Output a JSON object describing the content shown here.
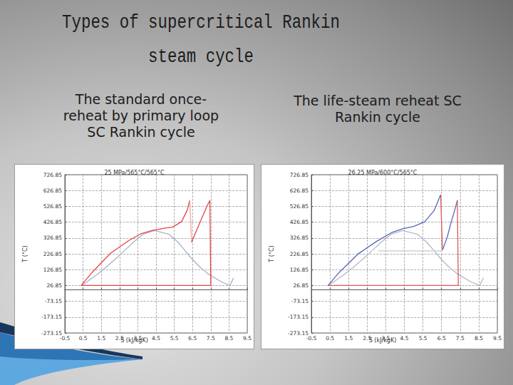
{
  "slide": {
    "title_lines": [
      "Types of supercritical Rankin",
      "steam cycle"
    ],
    "captions": [
      [
        "The standard once-",
        "reheat by primary loop",
        "SC Rankin cycle"
      ],
      [
        "The life-steam reheat SC",
        "Rankin cycle"
      ]
    ]
  },
  "chart_data": [
    {
      "type": "line",
      "title": "25 MPa/565°C/565°C",
      "x_label": "S (kJ/kgK)",
      "y_label": "T (°C)",
      "xlim": [
        -0.5,
        9.5
      ],
      "ylim": [
        -273.15,
        726.85
      ],
      "xticks": [
        -0.5,
        0.5,
        1.5,
        2.5,
        3.5,
        4.5,
        5.5,
        6.5,
        7.5,
        8.5,
        9.5
      ],
      "yticks": [
        -273.15,
        -173.15,
        -73.15,
        26.85,
        126.85,
        226.85,
        326.85,
        426.85,
        526.85,
        626.85,
        726.85
      ],
      "grid": true,
      "series": [
        {
          "color": "#aab0cc",
          "x": [
            0.39,
            0.704,
            1.307,
            1.842,
            2.331,
            2.793,
            3.255,
            3.778,
            4.407,
            5.211,
            5.705,
            6.072,
            6.431,
            6.837,
            7.354,
            8.075,
            8.55,
            8.75
          ],
          "values": [
            26.85,
            50,
            100,
            150,
            200,
            250,
            300,
            350,
            373.95,
            350,
            300,
            250,
            200,
            150,
            100,
            50,
            26.85,
            75
          ]
        },
        {
          "color": "#e64545",
          "x": [
            0.4,
            0.45,
            1.0,
            2.0,
            3.0,
            3.7,
            4.3,
            5.0,
            5.4,
            5.9,
            6.2,
            6.35
          ],
          "values": [
            26.85,
            35,
            110,
            230,
            310,
            355,
            375,
            390,
            395,
            430,
            500,
            565
          ]
        },
        {
          "color": "#f4a3a3",
          "x": [
            6.35,
            6.45
          ],
          "values": [
            565,
            300
          ]
        },
        {
          "color": "#e64545",
          "x": [
            6.45,
            6.7,
            7.0,
            7.3,
            7.45,
            7.5,
            0.4
          ],
          "values": [
            300,
            370,
            450,
            530,
            565,
            26.85,
            26.85
          ]
        }
      ]
    },
    {
      "type": "line",
      "title": "26.25 MPa/600°C/565°C",
      "x_label": "S (kJ/kgK)",
      "y_label": "T (°C)",
      "xlim": [
        -0.5,
        9.5
      ],
      "ylim": [
        -273.15,
        726.85
      ],
      "xticks": [
        -0.5,
        0.5,
        1.5,
        2.5,
        3.5,
        4.5,
        5.5,
        6.5,
        7.5,
        8.5,
        9.5
      ],
      "yticks": [
        -273.15,
        -173.15,
        -73.15,
        26.85,
        126.85,
        226.85,
        326.85,
        426.85,
        526.85,
        626.85,
        726.85
      ],
      "grid": true,
      "series": [
        {
          "color": "#b4b6c8",
          "x": [
            0.39,
            0.704,
            1.307,
            1.842,
            2.331,
            2.793,
            3.255,
            3.778,
            4.407,
            5.211,
            5.705,
            6.072,
            6.431,
            6.837,
            7.354,
            8.075,
            8.55,
            8.75
          ],
          "values": [
            26.85,
            50,
            100,
            150,
            200,
            250,
            300,
            350,
            373.95,
            350,
            300,
            250,
            200,
            150,
            100,
            50,
            26.85,
            75
          ]
        },
        {
          "color": "#c8c8c8",
          "x": [
            3.1,
            6.5
          ],
          "values": [
            245,
            245
          ]
        },
        {
          "color": "#5566bb",
          "x": [
            0.4,
            1.0,
            2.0,
            3.0,
            3.8,
            4.4,
            5.0,
            5.6,
            6.1,
            6.45
          ],
          "values": [
            26.85,
            110,
            225,
            305,
            360,
            385,
            400,
            430,
            500,
            600
          ]
        },
        {
          "color": "#e05555",
          "x": [
            6.45,
            6.55
          ],
          "values": [
            600,
            250
          ]
        },
        {
          "color": "#5566bb",
          "x": [
            6.55,
            6.8,
            7.0,
            7.2,
            7.35
          ],
          "values": [
            250,
            330,
            420,
            500,
            565
          ]
        },
        {
          "color": "#e05555",
          "x": [
            7.35,
            7.4,
            0.4
          ],
          "values": [
            565,
            26.85,
            26.85
          ]
        }
      ]
    }
  ]
}
